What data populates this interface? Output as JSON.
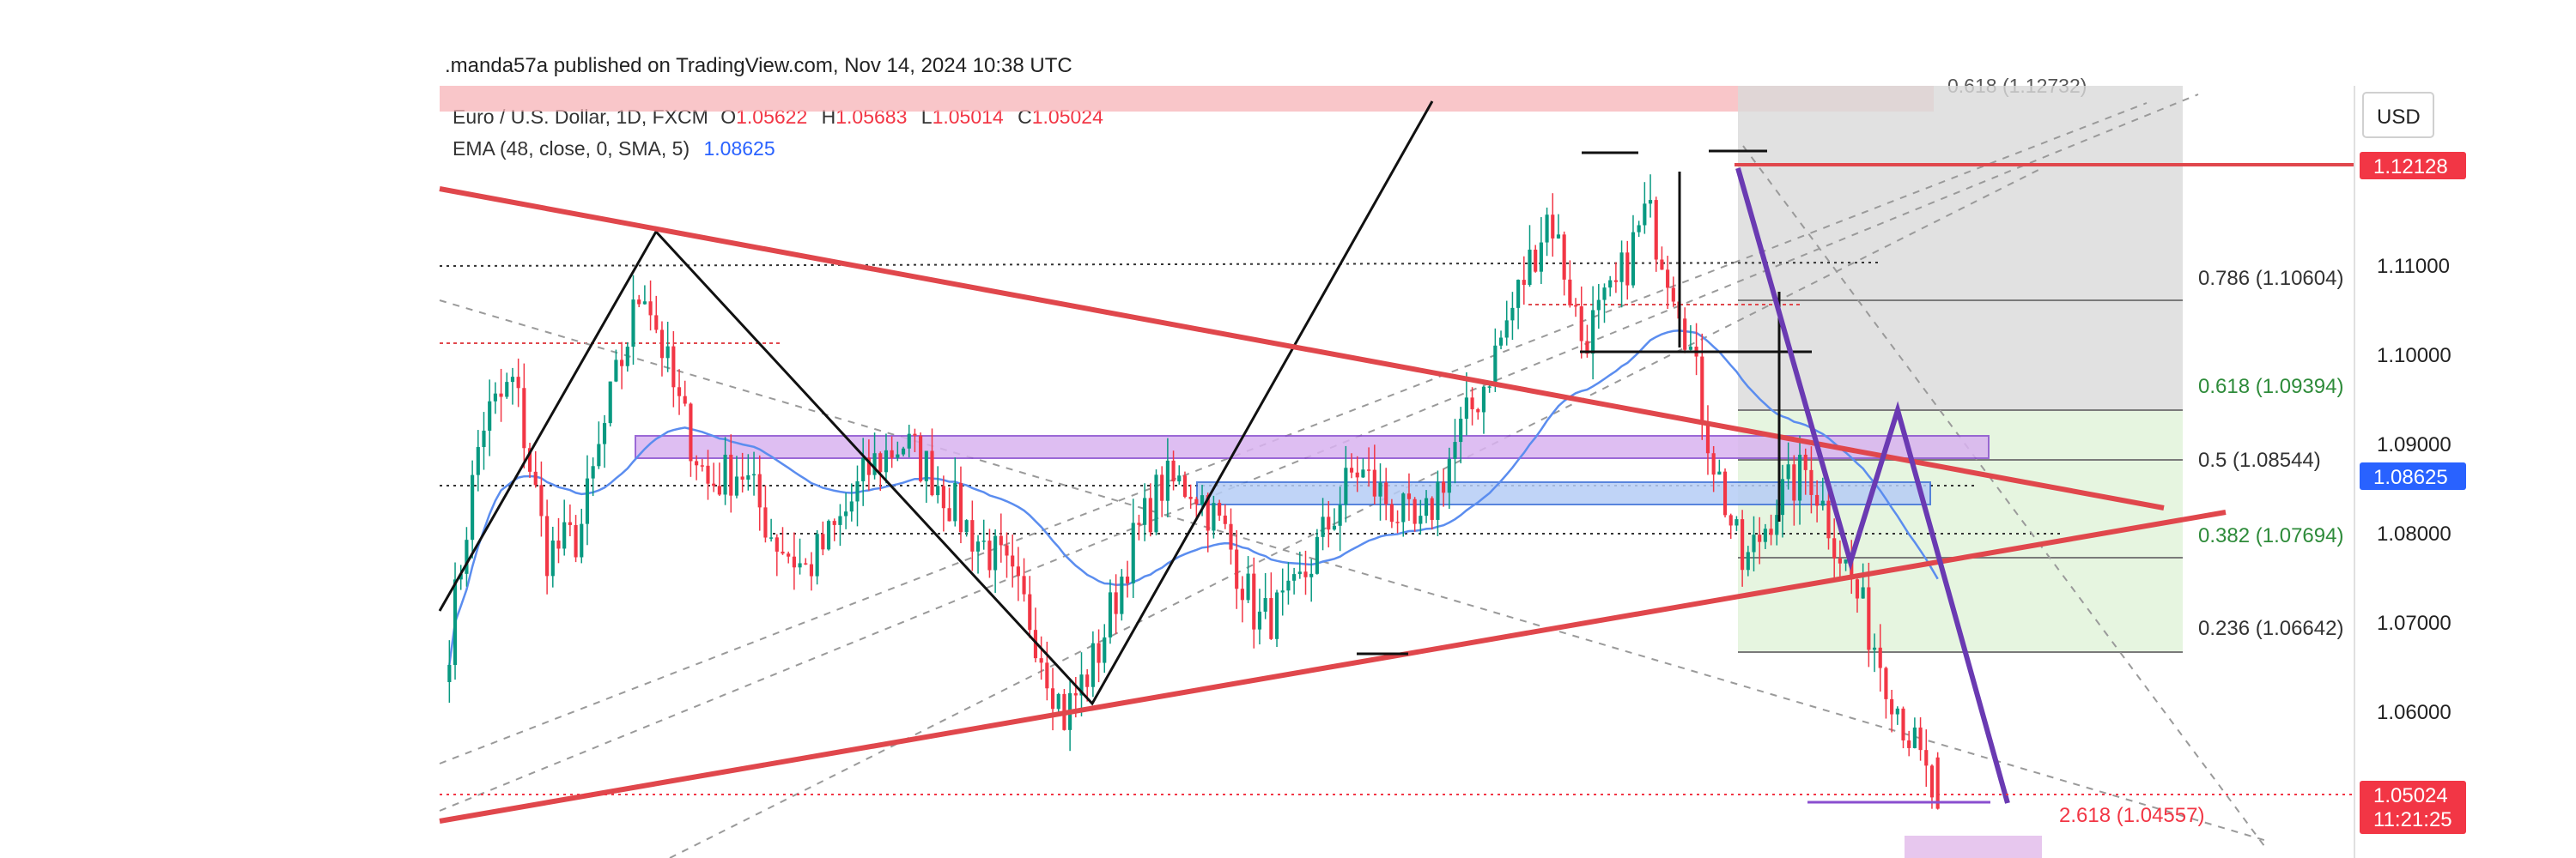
{
  "header": {
    "publisher": ".manda57a published on TradingView.com, Nov 14, 2024 10:38 UTC"
  },
  "legend": {
    "symbol": "Euro / U.S. Dollar, 1D, FXCM",
    "o_label": "O",
    "o_value": "1.05622",
    "h_label": "H",
    "h_value": "1.05683",
    "l_label": "L",
    "l_value": "1.05014",
    "c_label": "C",
    "c_value": "1.05024",
    "ema_label": "EMA (48, close, 0, SMA, 5)",
    "ema_value": "1.08625"
  },
  "price_axis": {
    "currency": "USD",
    "ticks": [
      "1.11000",
      "1.10000",
      "1.09000",
      "1.08000",
      "1.07000",
      "1.06000"
    ],
    "badges": [
      {
        "text": "1.12128",
        "color": "#f23645"
      },
      {
        "text": "1.08625",
        "color": "#2962ff"
      },
      {
        "text": "1.05024",
        "color": "#f23645"
      },
      {
        "text": "11:21:25",
        "color": "#f23645"
      }
    ]
  },
  "fib": {
    "top_label": "0.618 (1.12732)",
    "levels": [
      {
        "text": "0.786 (1.10604)",
        "color": "#333333"
      },
      {
        "text": "0.618 (1.09394)",
        "color": "#2e8b3a"
      },
      {
        "text": "0.5 (1.08544)",
        "color": "#333333"
      },
      {
        "text": "0.382 (1.07694)",
        "color": "#2e8b3a"
      },
      {
        "text": "0.236 (1.06642)",
        "color": "#333333"
      },
      {
        "text": "2.618 (1.04557)",
        "color": "#f23645"
      }
    ]
  },
  "colors": {
    "up": "#089981",
    "down": "#f23645",
    "ema": "#5b8def",
    "triangle": "#e0474c",
    "trend": "#111111",
    "projection": "#6a3ab2",
    "zone_purple": "#d9b3f0",
    "zone_blue": "#b6cdf6",
    "fib_gray": "#d9d9d9",
    "fib_green": "#e3f4dd"
  },
  "chart_data": {
    "type": "candlestick",
    "instrument": "Euro / U.S. Dollar",
    "timeframe": "1D",
    "ylim": [
      1.0445,
      1.1345
    ],
    "last": {
      "open": 1.05622,
      "high": 1.05683,
      "low": 1.05014,
      "close": 1.05024
    },
    "ema": 1.08625,
    "swing_high_price": 1.12128,
    "fib_levels": [
      {
        "ratio": 0.786,
        "price": 1.10604
      },
      {
        "ratio": 0.618,
        "price": 1.09394
      },
      {
        "ratio": 0.5,
        "price": 1.08544
      },
      {
        "ratio": 0.382,
        "price": 1.07694
      },
      {
        "ratio": 0.236,
        "price": 1.06642
      },
      {
        "ratio": 2.618,
        "price": 1.04557
      }
    ],
    "path": [
      1.07,
      1.095,
      1.1,
      1.08,
      1.082,
      1.098,
      1.112,
      1.098,
      1.088,
      1.09,
      1.082,
      1.078,
      1.083,
      1.09,
      1.093,
      1.089,
      1.083,
      1.079,
      1.072,
      1.061,
      1.068,
      1.08,
      1.088,
      1.088,
      1.082,
      1.072,
      1.074,
      1.082,
      1.09,
      1.086,
      1.082,
      1.092,
      1.1,
      1.11,
      1.12,
      1.105,
      1.11,
      1.12,
      1.11,
      1.092,
      1.078,
      1.086,
      1.09,
      1.08,
      1.07,
      1.06,
      1.0502
    ]
  }
}
